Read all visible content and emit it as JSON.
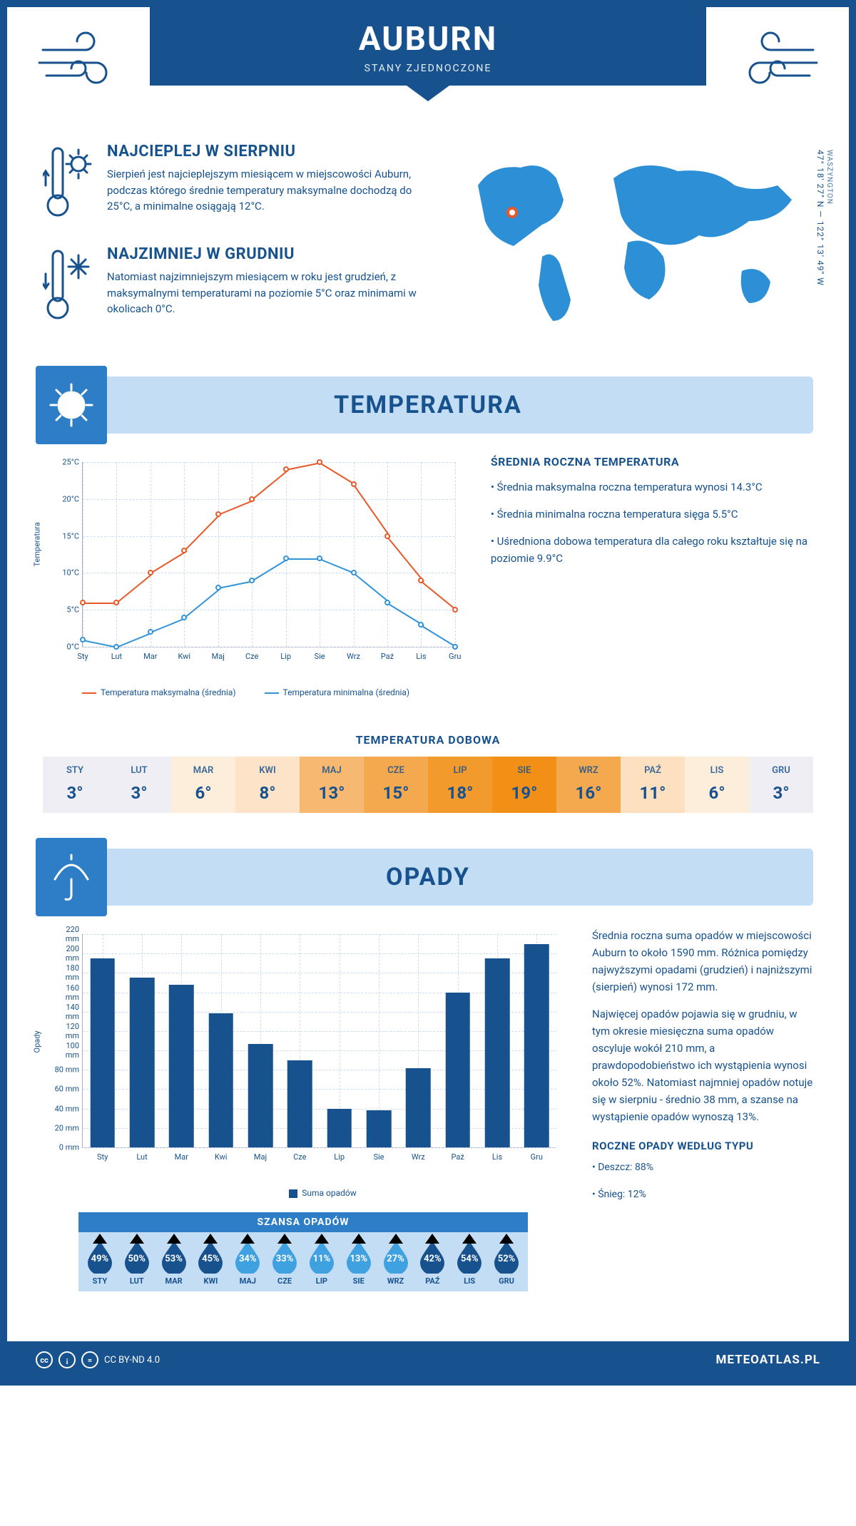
{
  "header": {
    "city": "AUBURN",
    "country": "STANY ZJEDNOCZONE"
  },
  "coords": {
    "text": "47° 18' 27\" N — 122° 13' 49\" W",
    "region": "WASZYNGTON"
  },
  "map": {
    "marker_left_pct": 14,
    "marker_top_pct": 34,
    "land_color": "#2d8fd6",
    "marker_color": "#e8592a"
  },
  "facts": {
    "hot": {
      "title": "NAJCIEPLEJ W SIERPNIU",
      "text": "Sierpień jest najcieplejszym miesiącem w miejscowości Auburn, podczas którego średnie temperatury maksymalne dochodzą do 25°C, a minimalne osiągają 12°C."
    },
    "cold": {
      "title": "NAJZIMNIEJ W GRUDNIU",
      "text": "Natomiast najzimniejszym miesiącem w roku jest grudzień, z maksymalnymi temperaturami na poziomie 5°C oraz minimami w okolicach 0°C."
    }
  },
  "months": [
    "Sty",
    "Lut",
    "Mar",
    "Kwi",
    "Maj",
    "Cze",
    "Lip",
    "Sie",
    "Wrz",
    "Paź",
    "Lis",
    "Gru"
  ],
  "months_upper": [
    "STY",
    "LUT",
    "MAR",
    "KWI",
    "MAJ",
    "CZE",
    "LIP",
    "SIE",
    "WRZ",
    "PAŹ",
    "LIS",
    "GRU"
  ],
  "temp_section": {
    "title": "TEMPERATURA",
    "y_label": "Temperatura",
    "ylim": [
      0,
      25
    ],
    "ytick_step": 5,
    "ytick_suffix": "°C",
    "legend_max": "Temperatura maksymalna (średnia)",
    "legend_min": "Temperatura minimalna (średnia)",
    "series_max": {
      "color": "#e8592a",
      "values": [
        6,
        6,
        10,
        13,
        18,
        20,
        24,
        25,
        22,
        15,
        9,
        5
      ]
    },
    "series_min": {
      "color": "#3293d8",
      "values": [
        1,
        0,
        2,
        4,
        8,
        9,
        12,
        12,
        10,
        6,
        3,
        0
      ]
    },
    "grid_color": "#cde2f2",
    "summary_title": "ŚREDNIA ROCZNA TEMPERATURA",
    "summary_items": [
      "• Średnia maksymalna roczna temperatura wynosi 14.3°C",
      "• Średnia minimalna roczna temperatura sięga 5.5°C",
      "• Uśredniona dobowa temperatura dla całego roku kształtuje się na poziomie 9.9°C"
    ]
  },
  "daily": {
    "title": "TEMPERATURA DOBOWA",
    "values": [
      "3°",
      "3°",
      "6°",
      "8°",
      "13°",
      "15°",
      "18°",
      "19°",
      "16°",
      "11°",
      "6°",
      "3°"
    ],
    "cell_bg": [
      "#efeef4",
      "#efeef4",
      "#fdeedc",
      "#fde4c8",
      "#f7b871",
      "#f5a94f",
      "#f39a2d",
      "#f28f17",
      "#f5a94f",
      "#fde0bf",
      "#fdeedc",
      "#efeef4"
    ],
    "cell_fg": [
      "#17528e",
      "#17528e",
      "#17528e",
      "#17528e",
      "#17528e",
      "#17528e",
      "#17528e",
      "#17528e",
      "#17528e",
      "#17528e",
      "#17528e",
      "#17528e"
    ]
  },
  "precip_section": {
    "title": "OPADY",
    "y_label": "Opady",
    "ylim": [
      0,
      220
    ],
    "ytick_step": 20,
    "ytick_suffix": " mm",
    "bar_color": "#17528e",
    "legend": "Suma opadów",
    "values": [
      195,
      175,
      168,
      138,
      107,
      90,
      40,
      38,
      82,
      160,
      195,
      210
    ],
    "summary": [
      "Średnia roczna suma opadów w miejscowości Auburn to około 1590 mm. Różnica pomiędzy najwyższymi opadami (grudzień) i najniższymi (sierpień) wynosi 172 mm.",
      "Najwięcej opadów pojawia się w grudniu, w tym okresie miesięczna suma opadów oscyluje wokół 210 mm, a prawdopodobieństwo ich wystąpienia wynosi około 52%. Natomiast najmniej opadów notuje się w sierpniu - średnio 38 mm, a szanse na wystąpienie opadów wynoszą 13%."
    ]
  },
  "chance": {
    "title": "SZANSA OPADÓW",
    "values": [
      49,
      50,
      53,
      45,
      34,
      33,
      11,
      13,
      27,
      42,
      54,
      52
    ],
    "dark_color": "#17528e",
    "light_color": "#3fa1e0"
  },
  "precip_types": {
    "title": "ROCZNE OPADY WEDŁUG TYPU",
    "items": [
      "• Deszcz: 88%",
      "• Śnieg: 12%"
    ]
  },
  "footer": {
    "license": "CC BY-ND 4.0",
    "brand": "METEOATLAS.PL"
  },
  "palette": {
    "primary": "#17528e",
    "banner_blue": "#c3ddf4",
    "accent_blue": "#2d7dc7"
  }
}
